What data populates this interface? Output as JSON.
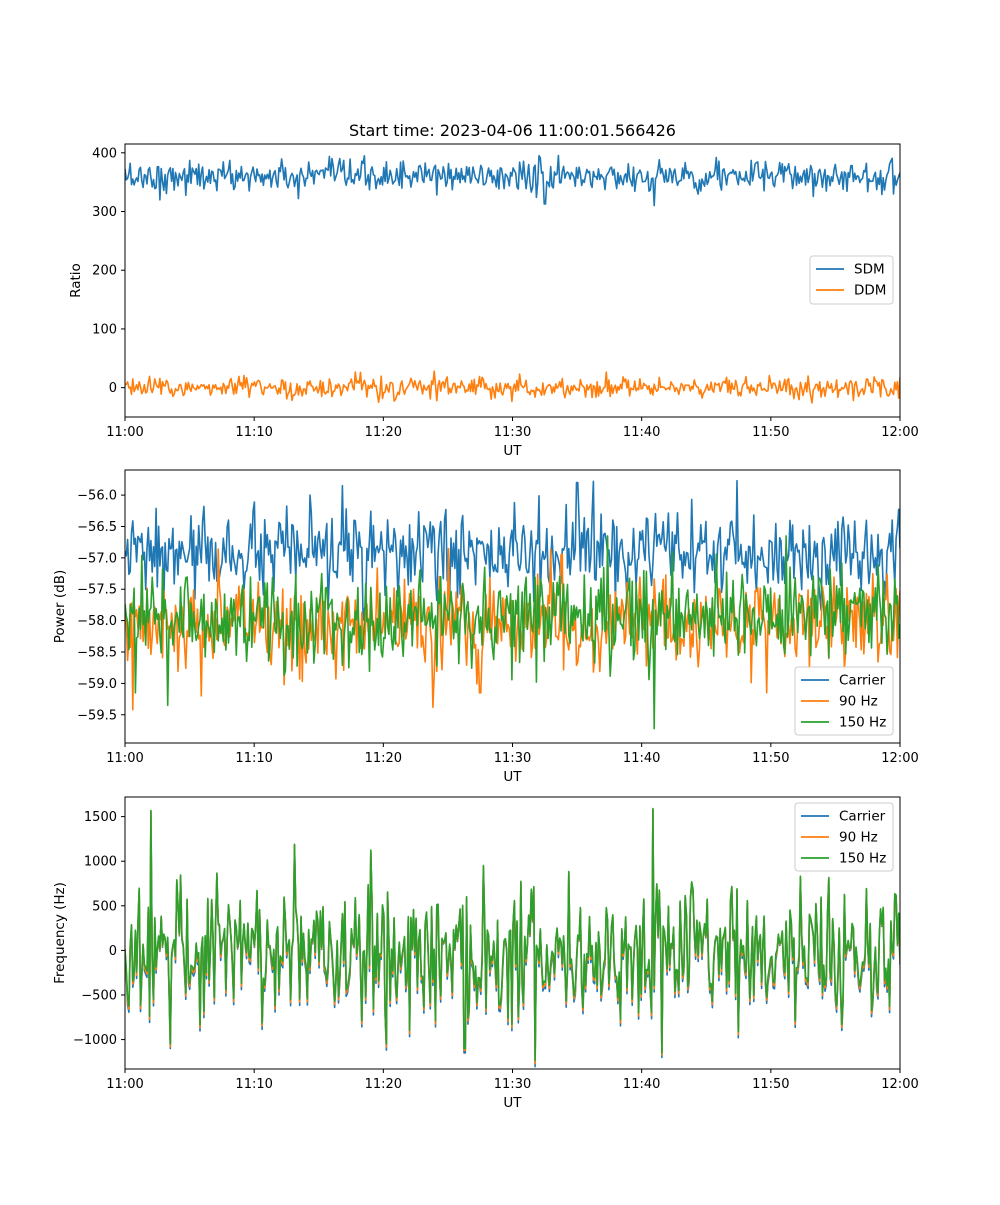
{
  "figure_title": "Start time: 2023-04-06 11:00:01.566426",
  "chart_data": [
    {
      "type": "line",
      "title": "Start time: 2023-04-06 11:00:01.566426",
      "xlabel": "UT",
      "ylabel": "Ratio",
      "x_range": [
        "11:00",
        "12:00"
      ],
      "xticks": [
        "11:00",
        "11:10",
        "11:20",
        "11:30",
        "11:40",
        "11:50",
        "12:00"
      ],
      "ylim": [
        -50,
        415
      ],
      "yticks": [
        0,
        100,
        200,
        300,
        400
      ],
      "ytick_labels": [
        "0",
        "100",
        "200",
        "300",
        "400"
      ],
      "legend": {
        "placement": "center-right",
        "entries": [
          "SDM",
          "DDM"
        ]
      },
      "grid": false,
      "series": [
        {
          "name": "SDM",
          "color": "#1f77b4",
          "mean": 360,
          "noise": 13,
          "spikes": [
            [
              2.7,
              320
            ],
            [
              13.4,
              322
            ],
            [
              32.5,
              313
            ],
            [
              41.0,
              310
            ],
            [
              45.8,
              392
            ],
            [
              58.6,
              329
            ]
          ]
        },
        {
          "name": "DDM",
          "color": "#ff7f0e",
          "mean": 0,
          "noise": 9,
          "spikes": [
            [
              18.2,
              26
            ],
            [
              23.9,
              28
            ],
            [
              19.6,
              -25
            ],
            [
              53.2,
              -26
            ],
            [
              56.4,
              -22
            ]
          ]
        }
      ]
    },
    {
      "type": "line",
      "xlabel": "UT",
      "ylabel": "Power (dB)",
      "x_range": [
        "11:00",
        "12:00"
      ],
      "xticks": [
        "11:00",
        "11:10",
        "11:20",
        "11:30",
        "11:40",
        "11:50",
        "12:00"
      ],
      "ylim": [
        -59.95,
        -55.6
      ],
      "yticks": [
        -59.5,
        -59.0,
        -58.5,
        -58.0,
        -57.5,
        -57.0,
        -56.5,
        -56.0
      ],
      "ytick_labels": [
        "−59.5",
        "−59.0",
        "−58.5",
        "−58.0",
        "−57.5",
        "−57.0",
        "−56.5",
        "−56.0"
      ],
      "legend": {
        "placement": "lower-right",
        "entries": [
          "Carrier",
          "90 Hz",
          "150 Hz"
        ]
      },
      "grid": false,
      "series": [
        {
          "name": "Carrier",
          "color": "#1f77b4",
          "mean": -56.95,
          "noise": 0.32,
          "spikes": [
            [
              16.8,
              -55.85
            ],
            [
              35.0,
              -55.8
            ],
            [
              36.3,
              -55.78
            ],
            [
              3.0,
              -57.75
            ]
          ]
        },
        {
          "name": "90 Hz",
          "color": "#ff7f0e",
          "mean": -58.05,
          "noise": 0.35,
          "spikes": [
            [
              0.6,
              -59.42
            ],
            [
              23.8,
              -59.38
            ],
            [
              5.9,
              -59.2
            ],
            [
              27.5,
              -59.15
            ],
            [
              33.8,
              -56.95
            ]
          ]
        },
        {
          "name": "150 Hz",
          "color": "#2ca02c",
          "mean": -57.95,
          "noise": 0.38,
          "spikes": [
            [
              41.0,
              -59.72
            ],
            [
              3.3,
              -59.35
            ],
            [
              0.8,
              -59.15
            ],
            [
              37.4,
              -56.65
            ],
            [
              51.2,
              -56.65
            ]
          ]
        }
      ]
    },
    {
      "type": "line",
      "xlabel": "UT",
      "ylabel": "Frequency (Hz)",
      "x_range": [
        "11:00",
        "12:00"
      ],
      "xticks": [
        "11:00",
        "11:10",
        "11:20",
        "11:30",
        "11:40",
        "11:50",
        "12:00"
      ],
      "ylim": [
        -1330,
        1720
      ],
      "yticks": [
        -1000,
        -500,
        0,
        500,
        1000,
        1500
      ],
      "ytick_labels": [
        "−1000",
        "−500",
        "0",
        "500",
        "1000",
        "1500"
      ],
      "legend": {
        "placement": "upper-right",
        "entries": [
          "Carrier",
          "90 Hz",
          "150 Hz"
        ]
      },
      "grid": false,
      "series": [
        {
          "name": "Carrier",
          "color": "#1f77b4",
          "mean": 0,
          "noise": 380,
          "offset": -70,
          "scale": 1.0,
          "spikes": [
            [
              2.0,
              1550
            ],
            [
              40.9,
              1580
            ],
            [
              3.5,
              -1100
            ],
            [
              26.3,
              -1150
            ],
            [
              41.6,
              -1200
            ],
            [
              13.1,
              1180
            ]
          ]
        },
        {
          "name": "90 Hz",
          "color": "#ff7f0e",
          "mean": 0,
          "noise": 380,
          "offset": -35,
          "scale": 1.0,
          "spikes": [
            [
              2.0,
              1560
            ],
            [
              40.9,
              1580
            ],
            [
              3.5,
              -1080
            ],
            [
              26.3,
              -1120
            ],
            [
              41.6,
              -1170
            ],
            [
              13.1,
              1180
            ]
          ]
        },
        {
          "name": "150 Hz",
          "color": "#2ca02c",
          "mean": 0,
          "noise": 380,
          "offset": 0,
          "scale": 1.0,
          "spikes": [
            [
              2.0,
              1570
            ],
            [
              40.9,
              1590
            ],
            [
              3.5,
              -1050
            ],
            [
              26.3,
              -1100
            ],
            [
              41.6,
              -1150
            ],
            [
              13.1,
              1190
            ]
          ]
        }
      ]
    }
  ]
}
